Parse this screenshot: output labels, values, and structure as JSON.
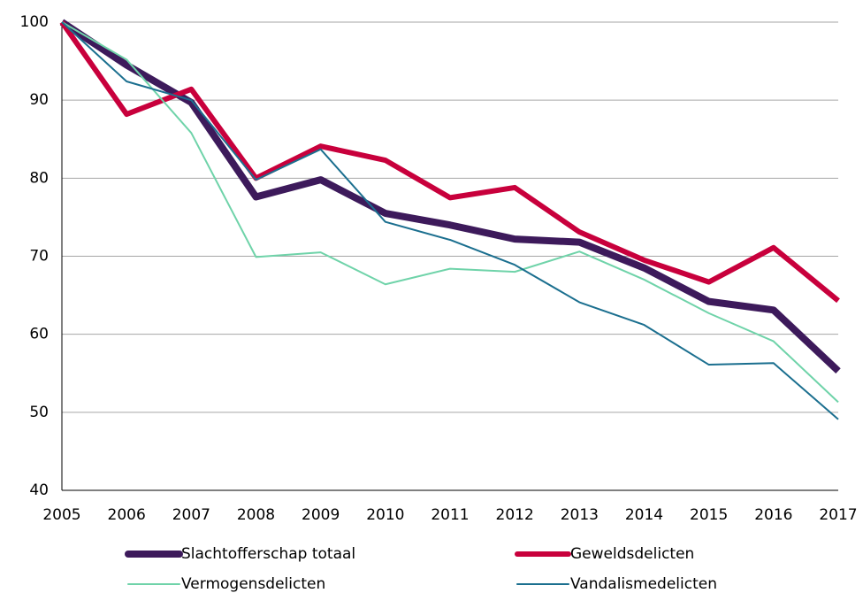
{
  "chart_data": {
    "type": "line",
    "x": [
      2005,
      2006,
      2007,
      2008,
      2009,
      2010,
      2011,
      2012,
      2013,
      2014,
      2015,
      2016,
      2017
    ],
    "xlim": [
      2005,
      2017
    ],
    "xticks": [
      2005,
      2006,
      2007,
      2008,
      2009,
      2010,
      2011,
      2012,
      2013,
      2014,
      2015,
      2016,
      2017
    ],
    "ylim": [
      40,
      100
    ],
    "yticks": [
      40,
      50,
      60,
      70,
      80,
      90,
      100
    ],
    "grid": true,
    "legend": "bottom",
    "series": [
      {
        "name": "Slachtofferschap totaal",
        "color": "#3d1a5b",
        "values": [
          100,
          94.5,
          89.7,
          77.6,
          79.8,
          75.5,
          74.0,
          72.2,
          71.8,
          68.5,
          64.2,
          63.1,
          55.3
        ]
      },
      {
        "name": "Geweldsdelicten",
        "color": "#c8003c",
        "values": [
          100,
          88.2,
          91.4,
          80.0,
          84.1,
          82.3,
          77.5,
          78.8,
          73.1,
          69.5,
          66.7,
          71.1,
          64.3
        ]
      },
      {
        "name": "Vermogensdelicten",
        "color": "#6fd3a9",
        "values": [
          100,
          95.2,
          85.8,
          69.9,
          70.5,
          66.4,
          68.4,
          68.0,
          70.6,
          67.0,
          62.7,
          59.1,
          51.3
        ]
      },
      {
        "name": "Vandalismedelicten",
        "color": "#1b6f8f",
        "values": [
          100,
          92.4,
          90.0,
          79.8,
          83.7,
          74.4,
          72.1,
          68.9,
          64.1,
          61.2,
          56.1,
          56.3,
          49.1
        ]
      }
    ]
  }
}
